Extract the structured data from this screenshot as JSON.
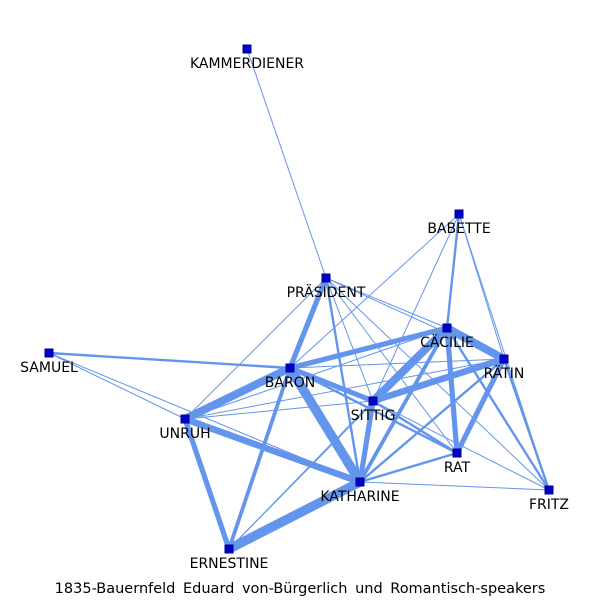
{
  "caption": "1835-Bauernfeld_Eduard_von-Bürgerlich_und_Romantisch-speakers",
  "caption_display": "1835-Bauernfeld Eduard von-Bürgerlich und Romantisch-speakers",
  "colors": {
    "edge": "#6495ED",
    "node_fill": "#0000CD",
    "node_stroke": "#00008B",
    "label": "#000000"
  },
  "nodes": [
    {
      "id": "KAMMERDIENER",
      "label": "KAMMERDIENER"
    },
    {
      "id": "BABETTE",
      "label": "BABETTE"
    },
    {
      "id": "PRÄSIDENT",
      "label": "PRÄSIDENT"
    },
    {
      "id": "CÄCILIE",
      "label": "CÄCILIE"
    },
    {
      "id": "RÄTIN",
      "label": "RÄTIN"
    },
    {
      "id": "SAMUEL",
      "label": "SAMUEL"
    },
    {
      "id": "BARON",
      "label": "BARON"
    },
    {
      "id": "SITTIG",
      "label": "SITTIG"
    },
    {
      "id": "UNRUH",
      "label": "UNRUH"
    },
    {
      "id": "RAT",
      "label": "RAT"
    },
    {
      "id": "KATHARINE",
      "label": "KATHARINE"
    },
    {
      "id": "FRITZ",
      "label": "FRITZ"
    },
    {
      "id": "ERNESTINE",
      "label": "ERNESTINE"
    }
  ],
  "edges": [
    {
      "source": "KAMMERDIENER",
      "target": "PRÄSIDENT",
      "weight": 1
    },
    {
      "source": "BABETTE",
      "target": "CÄCILIE",
      "weight": 2
    },
    {
      "source": "BABETTE",
      "target": "RÄTIN",
      "weight": 1
    },
    {
      "source": "BABETTE",
      "target": "SITTIG",
      "weight": 1
    },
    {
      "source": "BABETTE",
      "target": "BARON",
      "weight": 1
    },
    {
      "source": "BABETTE",
      "target": "FRITZ",
      "weight": 1
    },
    {
      "source": "PRÄSIDENT",
      "target": "BARON",
      "weight": 4
    },
    {
      "source": "PRÄSIDENT",
      "target": "CÄCILIE",
      "weight": 1
    },
    {
      "source": "PRÄSIDENT",
      "target": "RÄTIN",
      "weight": 1
    },
    {
      "source": "PRÄSIDENT",
      "target": "SITTIG",
      "weight": 1
    },
    {
      "source": "PRÄSIDENT",
      "target": "KATHARINE",
      "weight": 2
    },
    {
      "source": "PRÄSIDENT",
      "target": "RAT",
      "weight": 1
    },
    {
      "source": "PRÄSIDENT",
      "target": "UNRUH",
      "weight": 1
    },
    {
      "source": "PRÄSIDENT",
      "target": "FRITZ",
      "weight": 1
    },
    {
      "source": "CÄCILIE",
      "target": "RÄTIN",
      "weight": 6
    },
    {
      "source": "CÄCILIE",
      "target": "BARON",
      "weight": 4
    },
    {
      "source": "CÄCILIE",
      "target": "SITTIG",
      "weight": 6
    },
    {
      "source": "CÄCILIE",
      "target": "RAT",
      "weight": 4
    },
    {
      "source": "CÄCILIE",
      "target": "KATHARINE",
      "weight": 3
    },
    {
      "source": "CÄCILIE",
      "target": "UNRUH",
      "weight": 1
    },
    {
      "source": "CÄCILIE",
      "target": "ERNESTINE",
      "weight": 1
    },
    {
      "source": "CÄCILIE",
      "target": "FRITZ",
      "weight": 2
    },
    {
      "source": "RÄTIN",
      "target": "BARON",
      "weight": 1
    },
    {
      "source": "RÄTIN",
      "target": "SITTIG",
      "weight": 5
    },
    {
      "source": "RÄTIN",
      "target": "RAT",
      "weight": 4
    },
    {
      "source": "RÄTIN",
      "target": "KATHARINE",
      "weight": 2
    },
    {
      "source": "RÄTIN",
      "target": "UNRUH",
      "weight": 1
    },
    {
      "source": "RÄTIN",
      "target": "FRITZ",
      "weight": 2
    },
    {
      "source": "SAMUEL",
      "target": "BARON",
      "weight": 2
    },
    {
      "source": "SAMUEL",
      "target": "UNRUH",
      "weight": 1
    },
    {
      "source": "SAMUEL",
      "target": "KATHARINE",
      "weight": 1
    },
    {
      "source": "BARON",
      "target": "UNRUH",
      "weight": 6
    },
    {
      "source": "BARON",
      "target": "SITTIG",
      "weight": 4
    },
    {
      "source": "BARON",
      "target": "KATHARINE",
      "weight": 7
    },
    {
      "source": "BARON",
      "target": "ERNESTINE",
      "weight": 3
    },
    {
      "source": "BARON",
      "target": "RAT",
      "weight": 2
    },
    {
      "source": "SITTIG",
      "target": "KATHARINE",
      "weight": 4
    },
    {
      "source": "SITTIG",
      "target": "RAT",
      "weight": 2
    },
    {
      "source": "SITTIG",
      "target": "UNRUH",
      "weight": 1
    },
    {
      "source": "SITTIG",
      "target": "FRITZ",
      "weight": 1
    },
    {
      "source": "SITTIG",
      "target": "ERNESTINE",
      "weight": 1
    },
    {
      "source": "UNRUH",
      "target": "KATHARINE",
      "weight": 5
    },
    {
      "source": "UNRUH",
      "target": "ERNESTINE",
      "weight": 4
    },
    {
      "source": "RAT",
      "target": "KATHARINE",
      "weight": 2
    },
    {
      "source": "KATHARINE",
      "target": "ERNESTINE",
      "weight": 7
    },
    {
      "source": "KATHARINE",
      "target": "FRITZ",
      "weight": 1
    }
  ]
}
